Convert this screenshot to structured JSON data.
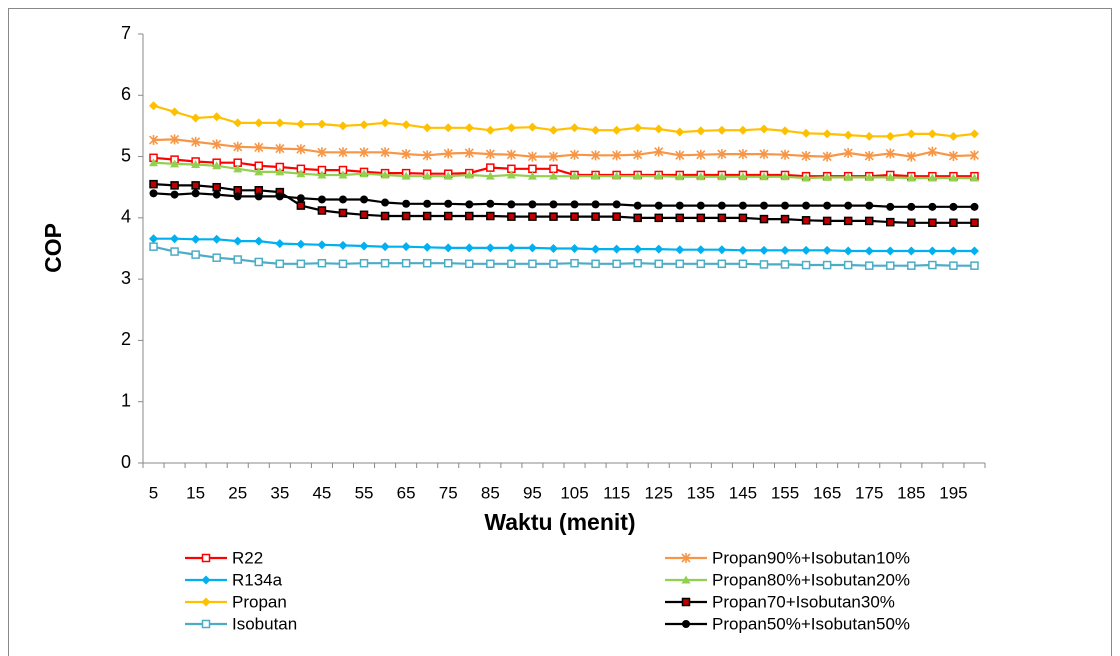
{
  "chart_data": {
    "type": "line",
    "x_label": "Waktu (menit)",
    "y_label": "COP",
    "categories": [
      "5",
      null,
      "15",
      null,
      "25",
      null,
      "35",
      null,
      "45",
      null,
      "55",
      null,
      "65",
      null,
      "75",
      null,
      "85",
      null,
      "95",
      null,
      "105",
      null,
      "115",
      null,
      "125",
      null,
      "135",
      null,
      "145",
      null,
      "155",
      null,
      "165",
      null,
      "175",
      null,
      "185",
      null,
      "195",
      null
    ],
    "ylim": [
      0,
      7
    ],
    "yticks": [
      0,
      1,
      2,
      3,
      4,
      5,
      6,
      7
    ],
    "grid": false,
    "legend": "bottom",
    "series": [
      {
        "name": "R22",
        "color": "#ff0000",
        "marker": "square-open",
        "values": [
          4.98,
          4.95,
          4.92,
          4.9,
          4.9,
          4.85,
          4.83,
          4.8,
          4.78,
          4.78,
          4.75,
          4.73,
          4.73,
          4.72,
          4.72,
          4.73,
          4.82,
          4.8,
          4.8,
          4.8,
          4.7,
          4.7,
          4.7,
          4.7,
          4.7,
          4.7,
          4.7,
          4.7,
          4.7,
          4.7,
          4.7,
          4.68,
          4.68,
          4.68,
          4.68,
          4.7,
          4.68,
          4.68,
          4.68,
          4.68
        ]
      },
      {
        "name": "Propan90%+Isobutan10%",
        "color": "#f79646",
        "marker": "star",
        "values": [
          5.27,
          5.28,
          5.24,
          5.2,
          5.16,
          5.15,
          5.13,
          5.12,
          5.07,
          5.07,
          5.07,
          5.07,
          5.04,
          5.02,
          5.05,
          5.06,
          5.04,
          5.03,
          5.0,
          5.0,
          5.03,
          5.02,
          5.02,
          5.03,
          5.08,
          5.02,
          5.03,
          5.04,
          5.04,
          5.04,
          5.03,
          5.01,
          5.0,
          5.06,
          5.01,
          5.05,
          5.0,
          5.08,
          5.01,
          5.02
        ]
      },
      {
        "name": "R134a",
        "color": "#00b0f0",
        "marker": "diamond",
        "values": [
          3.66,
          3.66,
          3.65,
          3.65,
          3.62,
          3.62,
          3.58,
          3.57,
          3.56,
          3.55,
          3.54,
          3.53,
          3.53,
          3.52,
          3.51,
          3.51,
          3.51,
          3.51,
          3.51,
          3.5,
          3.5,
          3.49,
          3.49,
          3.49,
          3.49,
          3.48,
          3.48,
          3.48,
          3.47,
          3.47,
          3.47,
          3.47,
          3.47,
          3.46,
          3.46,
          3.46,
          3.46,
          3.46,
          3.46,
          3.46
        ]
      },
      {
        "name": "Propan80%+Isobutan20%",
        "color": "#92d050",
        "marker": "triangle",
        "values": [
          4.9,
          4.88,
          4.87,
          4.85,
          4.8,
          4.75,
          4.75,
          4.72,
          4.7,
          4.7,
          4.72,
          4.7,
          4.68,
          4.68,
          4.68,
          4.7,
          4.68,
          4.7,
          4.68,
          4.68,
          4.68,
          4.68,
          4.68,
          4.68,
          4.68,
          4.67,
          4.67,
          4.67,
          4.67,
          4.67,
          4.67,
          4.65,
          4.66,
          4.66,
          4.66,
          4.66,
          4.65,
          4.65,
          4.65,
          4.65
        ]
      },
      {
        "name": "Propan",
        "color": "#ffc000",
        "marker": "diamond",
        "values": [
          5.83,
          5.73,
          5.63,
          5.65,
          5.55,
          5.55,
          5.55,
          5.53,
          5.53,
          5.5,
          5.52,
          5.55,
          5.52,
          5.47,
          5.47,
          5.47,
          5.43,
          5.47,
          5.48,
          5.43,
          5.47,
          5.43,
          5.43,
          5.47,
          5.45,
          5.4,
          5.42,
          5.43,
          5.43,
          5.45,
          5.42,
          5.38,
          5.37,
          5.35,
          5.33,
          5.33,
          5.37,
          5.37,
          5.33,
          5.37
        ]
      },
      {
        "name": "Propan70+Isobutan30%",
        "color": "#000000",
        "marker_color": "#c00000",
        "marker": "square",
        "values": [
          4.55,
          4.53,
          4.53,
          4.5,
          4.45,
          4.45,
          4.42,
          4.2,
          4.12,
          4.08,
          4.05,
          4.03,
          4.03,
          4.03,
          4.03,
          4.03,
          4.03,
          4.02,
          4.02,
          4.02,
          4.02,
          4.02,
          4.02,
          4.0,
          4.0,
          4.0,
          4.0,
          4.0,
          4.0,
          3.98,
          3.98,
          3.96,
          3.95,
          3.95,
          3.95,
          3.93,
          3.92,
          3.92,
          3.92,
          3.92
        ]
      },
      {
        "name": "Isobutan",
        "color": "#4bacc6",
        "marker": "square-open",
        "values": [
          3.53,
          3.45,
          3.4,
          3.35,
          3.32,
          3.28,
          3.25,
          3.25,
          3.26,
          3.25,
          3.26,
          3.26,
          3.26,
          3.26,
          3.26,
          3.25,
          3.25,
          3.25,
          3.25,
          3.25,
          3.26,
          3.25,
          3.25,
          3.26,
          3.25,
          3.25,
          3.25,
          3.25,
          3.25,
          3.24,
          3.24,
          3.23,
          3.23,
          3.23,
          3.22,
          3.22,
          3.22,
          3.23,
          3.22,
          3.22
        ]
      },
      {
        "name": "Propan50%+Isobutan50%",
        "color": "#000000",
        "marker": "circle",
        "values": [
          4.4,
          4.38,
          4.4,
          4.38,
          4.35,
          4.35,
          4.35,
          4.32,
          4.3,
          4.3,
          4.3,
          4.25,
          4.23,
          4.23,
          4.23,
          4.22,
          4.23,
          4.22,
          4.22,
          4.22,
          4.22,
          4.22,
          4.22,
          4.2,
          4.2,
          4.2,
          4.2,
          4.2,
          4.2,
          4.2,
          4.2,
          4.2,
          4.2,
          4.2,
          4.2,
          4.18,
          4.18,
          4.18,
          4.18,
          4.18
        ]
      }
    ]
  }
}
